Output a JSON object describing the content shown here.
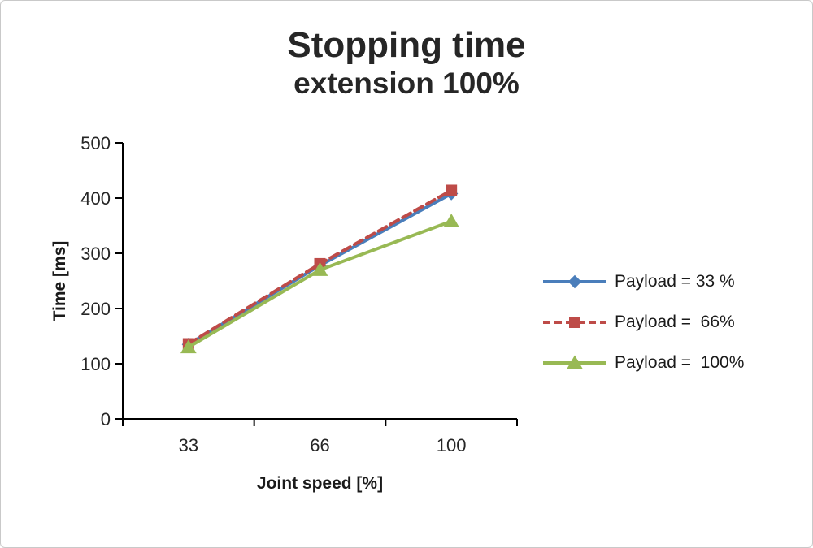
{
  "page": {
    "background": "#ffffff",
    "border_color": "#c9c9c9"
  },
  "title": {
    "line1": "Stopping time",
    "line2": "extension 100%",
    "color": "#262626"
  },
  "chart_data": {
    "type": "line",
    "categories": [
      "33",
      "66",
      "100"
    ],
    "xlabel": "Joint speed [%]",
    "ylabel": "Time [ms]",
    "ylim": [
      0,
      500
    ],
    "yticks": [
      0,
      100,
      200,
      300,
      400,
      500
    ],
    "grid": false,
    "legend_position": "right",
    "axis_color": "#000000",
    "tick_label_color": "#262626",
    "series": [
      {
        "name": "Payload = 33 %",
        "color": "#4a7ebb",
        "dash": "solid",
        "marker": "diamond",
        "values": [
          135,
          278,
          408
        ]
      },
      {
        "name": "Payload =  66%",
        "color": "#be4b48",
        "dash": "dashed",
        "marker": "square",
        "values": [
          136,
          281,
          414
        ]
      },
      {
        "name": "Payload =  100%",
        "color": "#98b954",
        "dash": "solid",
        "marker": "triangle",
        "values": [
          130,
          270,
          358
        ]
      }
    ]
  }
}
